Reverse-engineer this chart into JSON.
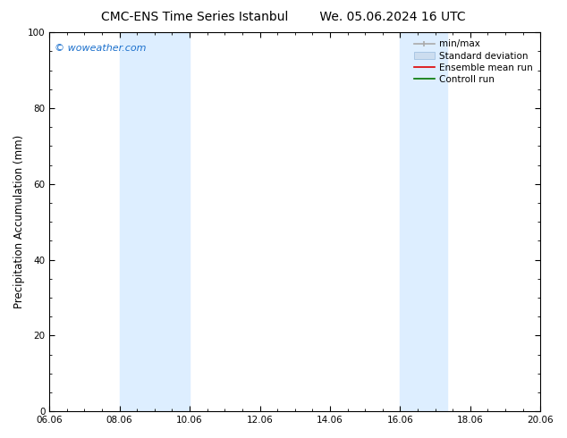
{
  "title_left": "CMC-ENS Time Series Istanbul",
  "title_right": "We. 05.06.2024 16 UTC",
  "ylabel": "Precipitation Accumulation (mm)",
  "xlim_dates": [
    "06.06",
    "08.06",
    "10.06",
    "12.06",
    "14.06",
    "16.06",
    "18.06",
    "20.06"
  ],
  "xlim": [
    0,
    14
  ],
  "ylim": [
    0,
    100
  ],
  "yticks": [
    0,
    20,
    40,
    60,
    80,
    100
  ],
  "shaded_regions": [
    {
      "x_start": 2.0,
      "x_end": 4.0
    },
    {
      "x_start": 10.0,
      "x_end": 11.333
    }
  ],
  "shade_color": "#ddeeff",
  "watermark_text": "© woweather.com",
  "watermark_color": "#1a6fcc",
  "bg_color": "#ffffff",
  "axes_bg_color": "#ffffff",
  "title_fontsize": 10,
  "tick_fontsize": 7.5,
  "ylabel_fontsize": 8.5,
  "legend_fontsize": 7.5
}
